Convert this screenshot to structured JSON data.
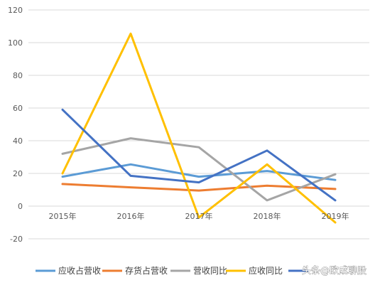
{
  "chart_data": {
    "type": "line",
    "categories": [
      "2015年",
      "2016年",
      "2017年",
      "2018年",
      "2019年"
    ],
    "ylim": [
      -20,
      120
    ],
    "yticks": [
      -20,
      0,
      20,
      40,
      60,
      80,
      100,
      120
    ],
    "grid": true,
    "legend_position": "bottom",
    "series": [
      {
        "name": "应收占营收",
        "color": "#5B9BD5",
        "values": [
          18,
          25.5,
          18,
          21.5,
          16
        ]
      },
      {
        "name": "存货占营收",
        "color": "#ED7D31",
        "values": [
          13.5,
          11.5,
          9.5,
          12.5,
          10.5
        ]
      },
      {
        "name": "营收同比",
        "color": "#A5A5A5",
        "values": [
          32,
          41.5,
          36,
          3.5,
          19.5
        ]
      },
      {
        "name": "应收同比",
        "color": "#FFC000",
        "values": [
          20,
          105.5,
          -7,
          25.5,
          -10
        ]
      },
      {
        "name": "",
        "color": "#4472C4",
        "values": [
          59,
          18.5,
          14.5,
          34,
          3.5
        ]
      }
    ]
  },
  "legend": {
    "items": [
      "应收占营收",
      "存货占营收",
      "营收同比",
      "应收同比",
      ""
    ]
  },
  "watermark": "头条@欧成聊股"
}
